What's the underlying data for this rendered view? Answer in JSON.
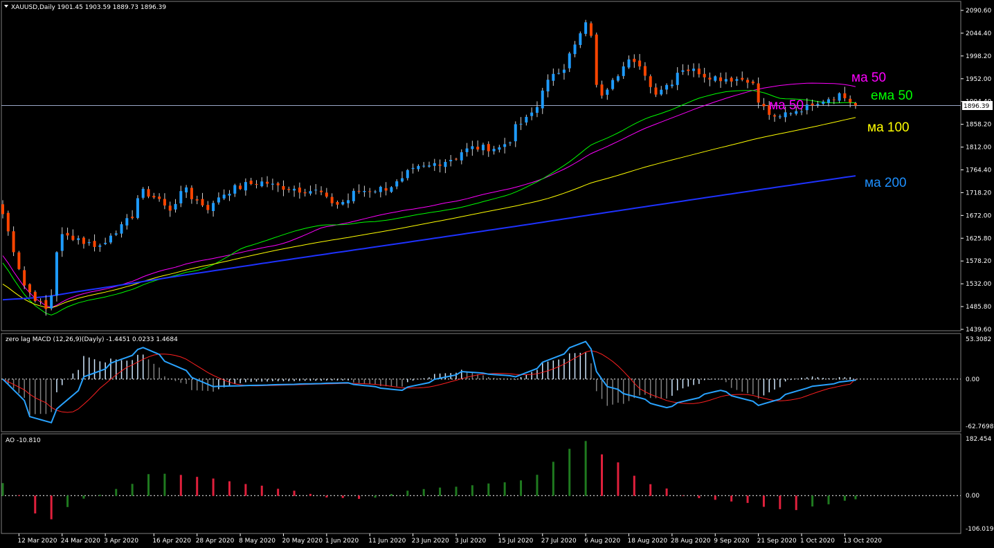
{
  "main_panel": {
    "symbol_line": "XAUUSD,Daily  1901.45 1903.59 1889.73 1896.39",
    "current_price_label": "1896.39",
    "price_scale_labels": [
      "2090.60",
      "2044.40",
      "1998.20",
      "1952.00",
      "1904.40",
      "1858.20",
      "1812.00",
      "1764.40",
      "1718.20",
      "1672.00",
      "1625.80",
      "1578.20",
      "1532.00",
      "1485.80",
      "1439.60"
    ],
    "ma_labels": [
      {
        "text": "ма 50",
        "color": "#ff00ff"
      },
      {
        "text": "ема 50",
        "color": "#00ff00"
      },
      {
        "text": "ма 100",
        "color": "#ffff00"
      },
      {
        "text": "ма 200",
        "color": "#1e90ff"
      },
      {
        "text": "ма 50",
        "color": "#ff00ff"
      }
    ]
  },
  "macd_panel": {
    "title": "zero lag MACD (12,26,9)(Dayly) -1.4451 0.0233 1.4684",
    "scale_labels": [
      "53.3082",
      "0.00",
      "-62.7698"
    ]
  },
  "ao_panel": {
    "title": "AO -10.810",
    "scale_labels": [
      "182.454",
      "0.00",
      "-106.019"
    ]
  },
  "x_axis_labels": [
    "12 Mar 2020",
    "24 Mar 2020",
    "3 Apr 2020",
    "16 Apr 2020",
    "28 Apr 2020",
    "8 May 2020",
    "20 May 2020",
    "1 Jun 2020",
    "11 Jun 2020",
    "23 Jun 2020",
    "3 Jul 2020",
    "15 Jul 2020",
    "27 Jul 2020",
    "6 Aug 2020",
    "18 Aug 2020",
    "28 Aug 2020",
    "9 Sep 2020",
    "21 Sep 2020",
    "1 Oct 2020",
    "13 Oct 2020"
  ],
  "colors": {
    "background": "#000000",
    "grid_border": "#808080",
    "bull_candle": "#1e9bff",
    "bear_candle": "#ff4500",
    "wick": "#d0d0d0",
    "ma50": "#ff00ff",
    "ema50": "#00ff00",
    "ma100": "#ffff00",
    "ma200": "#1e32ff",
    "macd_line": "#29a3ff",
    "signal_line": "#ff2020",
    "macd_hist": "#d0e8ff",
    "macd_hist_alt": "#808080",
    "ao_up": "#1f7a1f",
    "ao_down": "#e0203c",
    "text": "#ffffff"
  },
  "chart_data": [
    {
      "type": "candlestick",
      "title": "XAUUSD,Daily",
      "ylim": [
        1439.6,
        2090.6
      ],
      "x_range": [
        "9 Mar 2020",
        "15 Oct 2020"
      ],
      "close_anchors": {
        "dates": [
          "2020-03-09",
          "2020-03-13",
          "2020-03-16",
          "2020-03-19",
          "2020-03-24",
          "2020-03-26",
          "2020-04-02",
          "2020-04-08",
          "2020-04-14",
          "2020-04-21",
          "2020-04-24",
          "2020-04-30",
          "2020-05-07",
          "2020-05-14",
          "2020-05-21",
          "2020-05-28",
          "2020-06-03",
          "2020-06-09",
          "2020-06-16",
          "2020-06-24",
          "2020-06-30",
          "2020-07-08",
          "2020-07-15",
          "2020-07-22",
          "2020-07-28",
          "2020-08-04",
          "2020-08-06",
          "2020-08-11",
          "2020-08-13",
          "2020-08-18",
          "2020-08-25",
          "2020-09-01",
          "2020-09-10",
          "2020-09-17",
          "2020-09-24",
          "2020-10-01",
          "2020-10-09",
          "2020-10-12",
          "2020-10-15"
        ],
        "closes": [
          1675,
          1530,
          1515,
          1480,
          1630,
          1628,
          1610,
          1648,
          1720,
          1685,
          1730,
          1688,
          1728,
          1740,
          1728,
          1722,
          1695,
          1722,
          1728,
          1768,
          1780,
          1810,
          1810,
          1868,
          1945,
          2018,
          2064,
          1912,
          1955,
          1990,
          1925,
          1972,
          1952,
          1950,
          1868,
          1890,
          1915,
          1920,
          1896.39
        ]
      },
      "last_bar": {
        "open": 1901.45,
        "high": 1903.59,
        "low": 1889.73,
        "close": 1896.39
      },
      "series": [
        {
          "name": "ма 50",
          "first_value": 1590,
          "last_value": 1935
        },
        {
          "name": "ема 50",
          "first_value": 1575,
          "last_value": 1902
        },
        {
          "name": "ма 100",
          "first_value": 1532,
          "last_value": 1872
        },
        {
          "name": "ма 200",
          "first_value": 1500,
          "last_value": 1753
        }
      ]
    },
    {
      "type": "bar",
      "title": "zero lag MACD (12,26,9)(Dayly)",
      "ylim": [
        -62.7698,
        53.3082
      ],
      "values_now": {
        "macd": -1.4451,
        "signal": 0.0233,
        "histogram": 1.4684
      },
      "anchor_dates": [
        "2020-03-09",
        "2020-03-16",
        "2020-03-20",
        "2020-03-30",
        "2020-04-14",
        "2020-05-01",
        "2020-06-05",
        "2020-06-19",
        "2020-07-06",
        "2020-07-20",
        "2020-08-06",
        "2020-08-12",
        "2020-08-27",
        "2020-09-10",
        "2020-09-21",
        "2020-10-02",
        "2020-10-15"
      ],
      "macd_anchors": [
        0,
        -50,
        -58,
        3,
        42,
        -10,
        -5,
        -15,
        10,
        3,
        50,
        -10,
        -38,
        -15,
        -35,
        -12,
        -1.4451
      ]
    },
    {
      "type": "bar",
      "title": "AO",
      "ylim": [
        -106.019,
        182.454
      ],
      "value_now": -10.81,
      "anchor_dates": [
        "2020-03-09",
        "2020-03-16",
        "2020-03-20",
        "2020-03-27",
        "2020-04-08",
        "2020-04-16",
        "2020-04-28",
        "2020-05-15",
        "2020-06-01",
        "2020-06-10",
        "2020-06-24",
        "2020-07-10",
        "2020-07-22",
        "2020-08-06",
        "2020-08-20",
        "2020-09-02",
        "2020-09-16",
        "2020-09-28",
        "2020-10-15"
      ],
      "ao_anchors": [
        40,
        -50,
        -75,
        -20,
        25,
        75,
        60,
        30,
        -5,
        -10,
        20,
        35,
        50,
        175,
        55,
        -5,
        -20,
        -50,
        -10.81
      ]
    }
  ]
}
